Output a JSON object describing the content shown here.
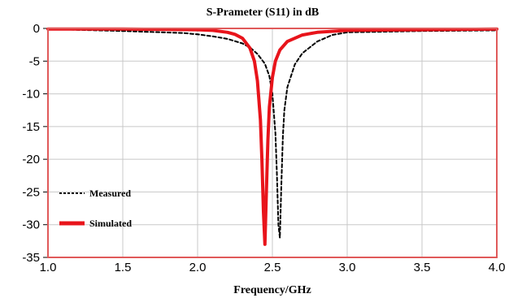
{
  "chart_data": {
    "type": "line",
    "title": "S-Prameter (S11) in dB",
    "xlabel": "Frequency/GHz",
    "ylabel": "",
    "xlim": [
      1.0,
      4.0
    ],
    "ylim": [
      -35,
      0
    ],
    "xticks": [
      "1.0",
      "1.5",
      "2.0",
      "2.5",
      "3.0",
      "3.5",
      "4.0"
    ],
    "yticks": [
      "0",
      "-5",
      "-10",
      "-15",
      "-20",
      "-25",
      "-30",
      "-35"
    ],
    "grid": true,
    "legend_position": "left",
    "series": [
      {
        "name": "Measured",
        "style": "dashed",
        "color": "#000000",
        "x": [
          1.0,
          1.5,
          1.9,
          2.0,
          2.1,
          2.2,
          2.3,
          2.35,
          2.4,
          2.45,
          2.48,
          2.5,
          2.52,
          2.53,
          2.54,
          2.55,
          2.56,
          2.57,
          2.58,
          2.6,
          2.65,
          2.7,
          2.8,
          2.9,
          3.0,
          3.5,
          4.0
        ],
        "y": [
          -0.1,
          -0.4,
          -0.7,
          -0.9,
          -1.2,
          -1.6,
          -2.3,
          -2.9,
          -3.9,
          -5.4,
          -7.3,
          -10.0,
          -16.0,
          -22.0,
          -30.0,
          -32.0,
          -24.0,
          -16.5,
          -12.5,
          -9.0,
          -5.5,
          -3.8,
          -2.0,
          -1.0,
          -0.6,
          -0.4,
          -0.3
        ]
      },
      {
        "name": "Simulated",
        "style": "solid",
        "color": "#e8141b",
        "x": [
          1.0,
          1.5,
          2.0,
          2.1,
          2.2,
          2.25,
          2.3,
          2.35,
          2.38,
          2.4,
          2.42,
          2.43,
          2.44,
          2.45,
          2.46,
          2.47,
          2.48,
          2.5,
          2.52,
          2.55,
          2.6,
          2.7,
          2.8,
          3.0,
          3.5,
          4.0
        ],
        "y": [
          -0.1,
          -0.1,
          -0.2,
          -0.3,
          -0.6,
          -0.9,
          -1.5,
          -3.0,
          -5.0,
          -8.0,
          -14.0,
          -20.0,
          -28.0,
          -33.0,
          -25.0,
          -17.0,
          -12.0,
          -7.5,
          -5.0,
          -3.3,
          -2.0,
          -1.0,
          -0.6,
          -0.3,
          -0.2,
          -0.1
        ]
      }
    ]
  }
}
